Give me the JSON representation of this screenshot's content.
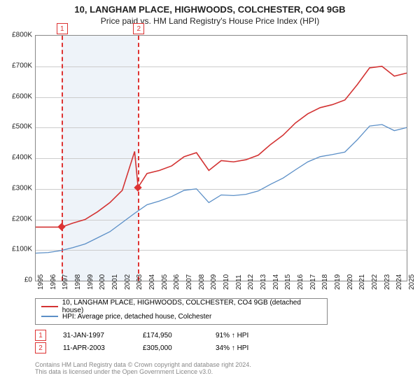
{
  "title_line1": "10, LANGHAM PLACE, HIGHWOODS, COLCHESTER, CO4 9GB",
  "title_line2": "Price paid vs. HM Land Registry's House Price Index (HPI)",
  "chart": {
    "type": "line",
    "background_color": "#ffffff",
    "grid_color": "#cccccc",
    "axis_color": "#888888",
    "x_years": [
      1995,
      1996,
      1997,
      1998,
      1999,
      2000,
      2001,
      2002,
      2003,
      2004,
      2005,
      2006,
      2007,
      2008,
      2009,
      2010,
      2011,
      2012,
      2013,
      2014,
      2015,
      2016,
      2017,
      2018,
      2019,
      2020,
      2021,
      2022,
      2023,
      2024,
      2025
    ],
    "y_ticks": [
      0,
      100000,
      200000,
      300000,
      400000,
      500000,
      600000,
      700000,
      800000
    ],
    "y_tick_labels": [
      "£0",
      "£100K",
      "£200K",
      "£300K",
      "£400K",
      "£500K",
      "£600K",
      "£700K",
      "£800K"
    ],
    "ylim": [
      0,
      800000
    ],
    "xlim": [
      1995,
      2025
    ],
    "shade_x_from": 1997.08,
    "shade_x_to": 2003.28,
    "shade_color": "#eef3f9",
    "dash_color": "#d33333",
    "series": [
      {
        "name": "property",
        "color": "#d33333",
        "width": 1.6,
        "label": "10, LANGHAM PLACE, HIGHWOODS, COLCHESTER, CO4 9GB (detached house)",
        "data": [
          [
            1995,
            175000
          ],
          [
            1996,
            175000
          ],
          [
            1997.08,
            174950
          ],
          [
            1998,
            188000
          ],
          [
            1999,
            200000
          ],
          [
            2000,
            225000
          ],
          [
            2001,
            255000
          ],
          [
            2002,
            295000
          ],
          [
            2003,
            422000
          ],
          [
            2003.28,
            305000
          ],
          [
            2004,
            350000
          ],
          [
            2005,
            360000
          ],
          [
            2006,
            375000
          ],
          [
            2007,
            405000
          ],
          [
            2008,
            418000
          ],
          [
            2009,
            360000
          ],
          [
            2010,
            392000
          ],
          [
            2011,
            388000
          ],
          [
            2012,
            395000
          ],
          [
            2013,
            410000
          ],
          [
            2014,
            445000
          ],
          [
            2015,
            475000
          ],
          [
            2016,
            515000
          ],
          [
            2017,
            545000
          ],
          [
            2018,
            565000
          ],
          [
            2019,
            575000
          ],
          [
            2020,
            590000
          ],
          [
            2021,
            640000
          ],
          [
            2022,
            695000
          ],
          [
            2023,
            700000
          ],
          [
            2024,
            668000
          ],
          [
            2025,
            678000
          ]
        ]
      },
      {
        "name": "hpi",
        "color": "#5b8fc7",
        "width": 1.3,
        "label": "HPI: Average price, detached house, Colchester",
        "data": [
          [
            1995,
            90000
          ],
          [
            1996,
            92000
          ],
          [
            1997,
            98000
          ],
          [
            1998,
            108000
          ],
          [
            1999,
            120000
          ],
          [
            2000,
            140000
          ],
          [
            2001,
            160000
          ],
          [
            2002,
            190000
          ],
          [
            2003,
            220000
          ],
          [
            2004,
            248000
          ],
          [
            2005,
            260000
          ],
          [
            2006,
            275000
          ],
          [
            2007,
            295000
          ],
          [
            2008,
            300000
          ],
          [
            2009,
            255000
          ],
          [
            2010,
            280000
          ],
          [
            2011,
            278000
          ],
          [
            2012,
            282000
          ],
          [
            2013,
            293000
          ],
          [
            2014,
            315000
          ],
          [
            2015,
            335000
          ],
          [
            2016,
            362000
          ],
          [
            2017,
            388000
          ],
          [
            2018,
            405000
          ],
          [
            2019,
            412000
          ],
          [
            2020,
            420000
          ],
          [
            2021,
            460000
          ],
          [
            2022,
            505000
          ],
          [
            2023,
            510000
          ],
          [
            2024,
            490000
          ],
          [
            2025,
            500000
          ]
        ]
      }
    ],
    "markers": [
      {
        "num": "1",
        "x": 1997.08,
        "y": 174950
      },
      {
        "num": "2",
        "x": 2003.28,
        "y": 305000
      }
    ]
  },
  "events": [
    {
      "num": "1",
      "date": "31-JAN-1997",
      "price": "£174,950",
      "pct": "91% ↑ HPI"
    },
    {
      "num": "2",
      "date": "11-APR-2003",
      "price": "£305,000",
      "pct": "34% ↑ HPI"
    }
  ],
  "license_line1": "Contains HM Land Registry data © Crown copyright and database right 2024.",
  "license_line2": "This data is licensed under the Open Government Licence v3.0.",
  "label_fontsize": 10,
  "title_fontsize": 13
}
